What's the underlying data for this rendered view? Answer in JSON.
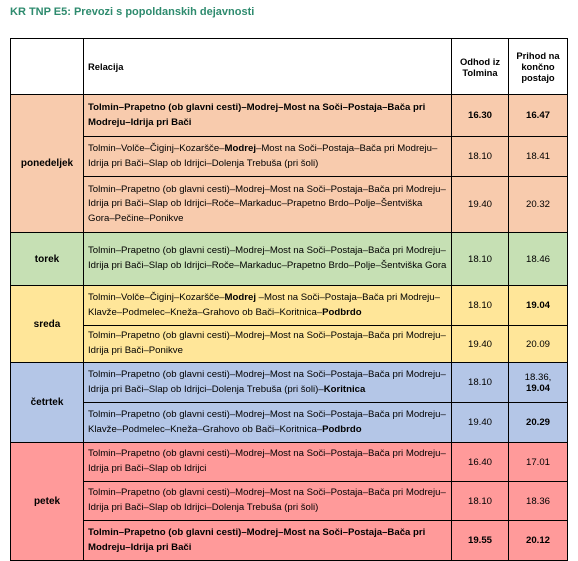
{
  "title": "KR TNP E5: Prevozi s popoldanskih dejavnosti",
  "headers": {
    "relacija": "Relacija",
    "odhod": "Odhod iz Tolmina",
    "prihod": "Prihod na končno postajo"
  },
  "colors": {
    "title": "#2e8b6e",
    "ponedeljek": "#f8cbad",
    "torek": "#c6e0b4",
    "sreda": "#ffe699",
    "cetrtek": "#b4c6e7",
    "petek": "#ff9a9a"
  },
  "days": {
    "ponedeljek": "ponedeljek",
    "torek": "torek",
    "sreda": "sreda",
    "cetrtek": "četrtek",
    "petek": "petek"
  },
  "rows": [
    {
      "route": "Tolmin–Prapetno (ob glavni cesti)–Modrej–Most na Soči–Postaja–Bača pri Modreju–Idrija pri Bači",
      "odhod": "16.30",
      "prihod": "16.47"
    },
    {
      "route_a": "Tolmin–Volče–Čiginj–Kozaršče–",
      "route_b": "Modrej",
      "route_c": "–Most na Soči–Postaja–Bača pri Modreju–Idrija pri Bači–Slap ob Idrijci–Dolenja Trebuša (pri šoli)",
      "odhod": "18.10",
      "prihod": "18.41"
    },
    {
      "route": "Tolmin–Prapetno (ob glavni cesti)–Modrej–Most na Soči–Postaja–Bača pri Modreju–Idrija pri Bači–Slap ob Idrijci–Roče–Markaduc–Prapetno Brdo–Polje–Šentviška Gora–Pečine–Ponikve",
      "odhod": "19.40",
      "prihod": "20.32"
    },
    {
      "route": "Tolmin–Prapetno (ob glavni cesti)–Modrej–Most na Soči–Postaja–Bača pri Modreju–Idrija pri Bači–Slap ob Idrijci–Roče–Markaduc–Prapetno Brdo–Polje–Šentviška Gora",
      "odhod": "18.10",
      "prihod": "18.46"
    },
    {
      "route_a": "Tolmin–Volče–Čiginj–Kozaršče–",
      "route_b": "Modrej",
      "route_c": " –Most na Soči–Postaja–Bača pri Modreju–Klavže–Podmelec–Kneža–Grahovo ob Bači–Koritnica–",
      "route_d": "Podbrdo",
      "odhod": "18.10",
      "prihod": "19.04"
    },
    {
      "route": "Tolmin–Prapetno (ob glavni cesti)–Modrej–Most na Soči–Postaja–Bača pri Modreju–Idrija pri Bači–Ponikve",
      "odhod": "19.40",
      "prihod": "20.09"
    },
    {
      "route_a": "Tolmin–Prapetno (ob glavni cesti)–Modrej–Most na Soči–Postaja–Bača pri Modreju–Idrija pri Bači–Slap ob Idrijci–Dolenja Trebuša (pri šoli)–",
      "route_b": "Koritnica",
      "odhod": "18.10",
      "prihod_a": "18.36,",
      "prihod_b": "19.04"
    },
    {
      "route_a": "Tolmin–Prapetno (ob glavni cesti)–Modrej–Most na Soči–Postaja–Bača pri Modreju–Klavže–Podmelec–Kneža–Grahovo ob Bači–Koritnica–",
      "route_b": "Podbrdo",
      "odhod": "19.40",
      "prihod": "20.29"
    },
    {
      "route": "Tolmin–Prapetno (ob glavni cesti)–Modrej–Most na Soči–Postaja–Bača pri Modreju–Idrija pri Bači–Slap ob Idrijci",
      "odhod": "16.40",
      "prihod": "17.01"
    },
    {
      "route": "Tolmin–Prapetno (ob glavni cesti)–Modrej–Most na Soči–Postaja–Bača pri Modreju–Idrija pri Bači–Slap ob Idrijci–Dolenja Trebuša (pri šoli)",
      "odhod": "18.10",
      "prihod": "18.36"
    },
    {
      "route": "Tolmin–Prapetno (ob glavni cesti)–Modrej–Most na Soči–Postaja–Bača pri Modreju–Idrija pri Bači",
      "odhod": "19.55",
      "prihod": "20.12"
    }
  ]
}
